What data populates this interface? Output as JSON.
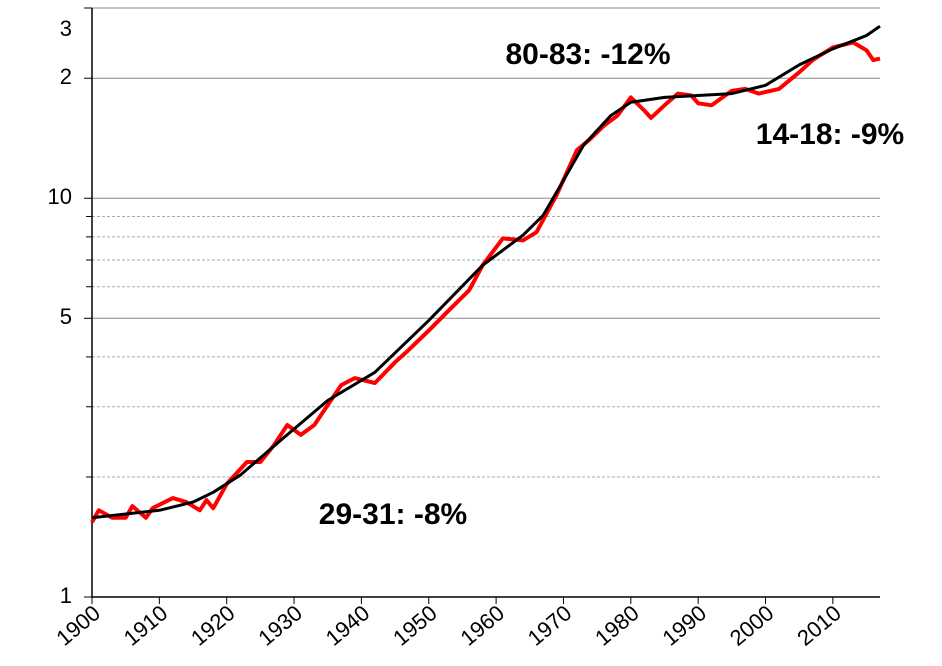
{
  "chart_data": {
    "type": "line",
    "log_scale": true,
    "annotations": [
      "80-83: -12%",
      "14-18: -9%",
      "29-31: -8%"
    ],
    "xlim": [
      1900,
      2017
    ],
    "xticks": [
      1900,
      1910,
      1920,
      1930,
      1940,
      1950,
      1960,
      1970,
      1980,
      1990,
      2000,
      2010
    ],
    "ylim": [
      1,
      30
    ],
    "yticks": [
      1,
      5,
      10,
      {
        "value": 20,
        "label": "2"
      },
      {
        "value": 30,
        "label": "3"
      }
    ],
    "minor_gridlines": [
      2,
      3,
      4,
      6,
      7,
      8,
      9
    ],
    "grid": true,
    "series": [
      {
        "color": "#ff0000",
        "x": [
          1900,
          1901,
          1903,
          1905,
          1906,
          1908,
          1909,
          1912,
          1914,
          1916,
          1917,
          1918,
          1920,
          1923,
          1925,
          1927,
          1929,
          1931,
          1933,
          1937,
          1939,
          1942,
          1945,
          1947,
          1950,
          1953,
          1956,
          1958,
          1961,
          1964,
          1966,
          1969,
          1972,
          1974,
          1976,
          1978,
          1980,
          1982,
          1983,
          1985,
          1987,
          1989,
          1990,
          1992,
          1995,
          1997,
          1999,
          2002,
          2005,
          2007,
          2010,
          2013,
          2015,
          2016,
          2017
        ],
        "values": [
          1.54,
          1.65,
          1.58,
          1.58,
          1.69,
          1.58,
          1.67,
          1.77,
          1.73,
          1.65,
          1.75,
          1.67,
          1.92,
          2.18,
          2.18,
          2.4,
          2.7,
          2.55,
          2.7,
          3.4,
          3.54,
          3.44,
          3.88,
          4.16,
          4.66,
          5.24,
          5.88,
          6.79,
          7.93,
          7.84,
          8.22,
          10.2,
          13.2,
          14.1,
          15.2,
          16.1,
          17.9,
          16.6,
          15.9,
          17.1,
          18.3,
          18.1,
          17.3,
          17.1,
          18.6,
          18.8,
          18.3,
          18.8,
          20.7,
          22.2,
          23.9,
          24.6,
          23.5,
          22.2,
          22.4
        ]
      },
      {
        "color": "#000000",
        "x": [
          1900,
          1910,
          1915,
          1918,
          1922,
          1928,
          1935,
          1942,
          1950,
          1958,
          1964,
          1967,
          1970,
          1973,
          1977,
          1980,
          1985,
          1990,
          1995,
          2000,
          2005,
          2010,
          2015,
          2017
        ],
        "values": [
          1.58,
          1.65,
          1.73,
          1.83,
          2.02,
          2.47,
          3.11,
          3.66,
          4.94,
          6.79,
          8.08,
          9.06,
          11.1,
          13.6,
          16.1,
          17.4,
          17.9,
          18.1,
          18.3,
          19.2,
          21.6,
          23.7,
          25.6,
          27.0
        ]
      }
    ]
  }
}
